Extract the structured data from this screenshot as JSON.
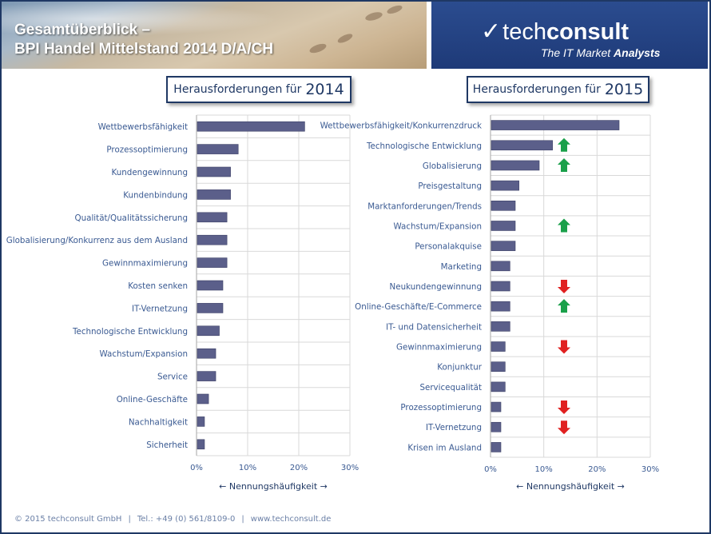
{
  "header": {
    "title_line1": "Gesamtüberblick –",
    "title_line2": "BPI Handel Mittelstand 2014 D/A/CH",
    "logo_prefix": "tech",
    "logo_suffix": "consult",
    "tagline_plain": "The IT Market",
    "tagline_bold": "Analysts"
  },
  "footer": {
    "copyright": "© 2015 techconsult GmbH",
    "phone": "Tel.: +49 (0) 561/8109-0",
    "website": "www.techconsult.de"
  },
  "colors": {
    "bar": "#5b5f8a",
    "up": "#1aa04a",
    "down": "#e02020",
    "frame": "#1f3864"
  },
  "chart_data": [
    {
      "type": "bar",
      "orientation": "horizontal",
      "title_text": "Herausforderungen für",
      "title_year": "2014",
      "xlabel": "← Nennungshäufigkeit →",
      "xlim": [
        0,
        30
      ],
      "xticks": [
        "0%",
        "10%",
        "20%",
        "30%"
      ],
      "grid": true,
      "categories": [
        "Wettbewerbsfähigkeit",
        "Prozessoptimierung",
        "Kundengewinnung",
        "Kundenbindung",
        "Qualität/Qualitätssicherung",
        "Globalisierung/Konkurrenz aus dem Ausland",
        "Gewinnmaximierung",
        "Kosten senken",
        "IT-Vernetzung",
        "Technologische Entwicklung",
        "Wachstum/Expansion",
        "Service",
        "Online-Geschäfte",
        "Nachhaltigkeit",
        "Sicherheit"
      ],
      "values": [
        21,
        8,
        6.5,
        6.5,
        5.8,
        5.8,
        5.8,
        5,
        5,
        4.3,
        3.6,
        3.6,
        2.2,
        1.4,
        1.4
      ]
    },
    {
      "type": "bar",
      "orientation": "horizontal",
      "title_text": "Herausforderungen für",
      "title_year": "2015",
      "xlabel": "← Nennungshäufigkeit →",
      "xlim": [
        0,
        30
      ],
      "xticks": [
        "0%",
        "10%",
        "20%",
        "30%"
      ],
      "grid": true,
      "categories": [
        "Wettbewerbsfähigkeit/Konkurrenzdruck",
        "Technologische Entwicklung",
        "Globalisierung",
        "Preisgestaltung",
        "Marktanforderungen/Trends",
        "Wachstum/Expansion",
        "Personalakquise",
        "Marketing",
        "Neukundengewinnung",
        "Online-Geschäfte/E-Commerce",
        "IT- und Datensicherheit",
        "Gewinnmaximierung",
        "Konjunktur",
        "Servicequalität",
        "Prozessoptimierung",
        "IT-Vernetzung",
        "Krisen im Ausland"
      ],
      "values": [
        24,
        11.5,
        9,
        5.2,
        4.5,
        4.5,
        4.5,
        3.5,
        3.5,
        3.5,
        3.5,
        2.6,
        2.6,
        2.6,
        1.8,
        1.8,
        1.8
      ],
      "trend": [
        "",
        "up",
        "up",
        "",
        "",
        "up",
        "",
        "",
        "down",
        "up",
        "",
        "down",
        "",
        "",
        "down",
        "down",
        ""
      ]
    }
  ]
}
